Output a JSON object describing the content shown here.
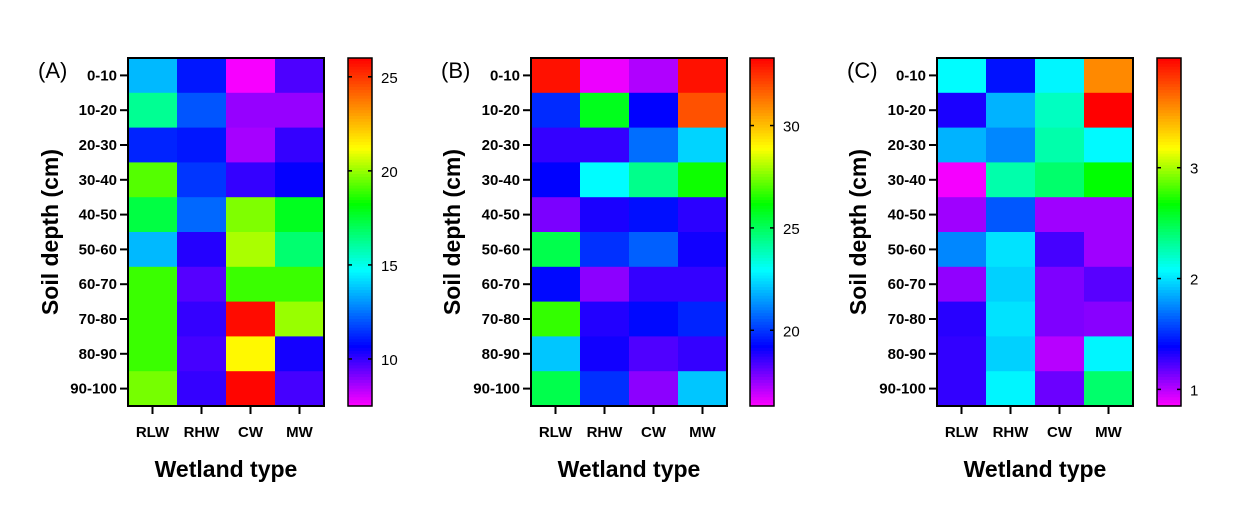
{
  "chart_data": [
    {
      "type": "heatmap",
      "panel_label": "(A)",
      "xlabel": "Wetland type",
      "ylabel": "Soil depth (cm)",
      "x_categories": [
        "RLW",
        "RHW",
        "CW",
        "MW"
      ],
      "y_categories": [
        "0-10",
        "10-20",
        "20-30",
        "30-40",
        "40-50",
        "50-60",
        "60-70",
        "70-80",
        "80-90",
        "90-100"
      ],
      "values": [
        [
          13.6,
          11.0,
          7.6,
          9.7
        ],
        [
          16.2,
          12.0,
          8.8,
          8.8
        ],
        [
          11.2,
          11.0,
          8.6,
          10.0
        ],
        [
          19.2,
          11.5,
          10.0,
          10.6
        ],
        [
          17.3,
          12.3,
          19.7,
          17.8
        ],
        [
          13.6,
          10.2,
          20.2,
          16.7
        ],
        [
          18.9,
          9.6,
          18.9,
          18.9
        ],
        [
          18.9,
          10.0,
          25.8,
          20.0
        ],
        [
          18.9,
          9.8,
          21.3,
          10.4
        ],
        [
          19.6,
          10.0,
          25.9,
          9.8
        ]
      ],
      "colorbar": {
        "range": [
          7.5,
          26
        ],
        "ticks": [
          10,
          15,
          20,
          25
        ],
        "tick_labels": [
          "10",
          "15",
          "20",
          "25"
        ]
      }
    },
    {
      "type": "heatmap",
      "panel_label": "(B)",
      "xlabel": "Wetland type",
      "ylabel": "Soil depth (cm)",
      "x_categories": [
        "RLW",
        "RHW",
        "CW",
        "MW"
      ],
      "y_categories": [
        "0-10",
        "10-20",
        "20-30",
        "30-40",
        "40-50",
        "50-60",
        "60-70",
        "70-80",
        "80-90",
        "90-100"
      ],
      "values": [
        [
          33.0,
          16.5,
          17.2,
          33.0
        ],
        [
          19.8,
          25.8,
          19.2,
          31.9
        ],
        [
          18.6,
          18.6,
          20.8,
          22.3
        ],
        [
          19.2,
          22.9,
          24.4,
          26.3
        ],
        [
          17.8,
          18.9,
          19.4,
          18.7
        ],
        [
          25.2,
          19.9,
          20.6,
          19.0
        ],
        [
          19.3,
          17.6,
          18.6,
          18.6
        ],
        [
          26.7,
          18.8,
          19.3,
          19.7
        ],
        [
          22.1,
          19.0,
          18.3,
          18.6
        ],
        [
          25.2,
          19.9,
          17.6,
          22.1
        ]
      ],
      "colorbar": {
        "range": [
          16.3,
          33.3
        ],
        "ticks": [
          20,
          25,
          30
        ],
        "tick_labels": [
          "20",
          "25",
          "30"
        ]
      }
    },
    {
      "type": "heatmap",
      "panel_label": "(C)",
      "xlabel": "Wetland type",
      "ylabel": "Soil depth (cm)",
      "x_categories": [
        "RLW",
        "RHW",
        "CW",
        "MW"
      ],
      "y_categories": [
        "0-10",
        "10-20",
        "20-30",
        "30-40",
        "40-50",
        "50-60",
        "60-70",
        "70-80",
        "80-90",
        "90-100"
      ],
      "values": [
        [
          2.07,
          1.43,
          2.05,
          3.55
        ],
        [
          1.33,
          1.87,
          2.22,
          3.99
        ],
        [
          1.87,
          1.75,
          2.27,
          2.06
        ],
        [
          0.87,
          2.27,
          2.42,
          2.67
        ],
        [
          1.05,
          1.62,
          1.05,
          1.05
        ],
        [
          1.75,
          2.0,
          1.24,
          1.05
        ],
        [
          1.08,
          1.95,
          1.12,
          1.2
        ],
        [
          1.3,
          2.0,
          1.12,
          1.1
        ],
        [
          1.28,
          1.95,
          1.0,
          2.05
        ],
        [
          1.28,
          2.05,
          1.16,
          2.42
        ]
      ],
      "colorbar": {
        "range": [
          0.85,
          3.99
        ],
        "ticks": [
          1,
          2,
          3
        ],
        "tick_labels": [
          "1",
          "2",
          "3"
        ]
      }
    }
  ],
  "colormap": {
    "name": "rainbow",
    "stops": [
      {
        "f": 0.0,
        "color": "#ff00ff"
      },
      {
        "f": 0.17,
        "color": "#0000ff"
      },
      {
        "f": 0.39,
        "color": "#00ffff"
      },
      {
        "f": 0.58,
        "color": "#00ff00"
      },
      {
        "f": 0.74,
        "color": "#ffff00"
      },
      {
        "f": 1.0,
        "color": "#ff0000"
      }
    ]
  }
}
